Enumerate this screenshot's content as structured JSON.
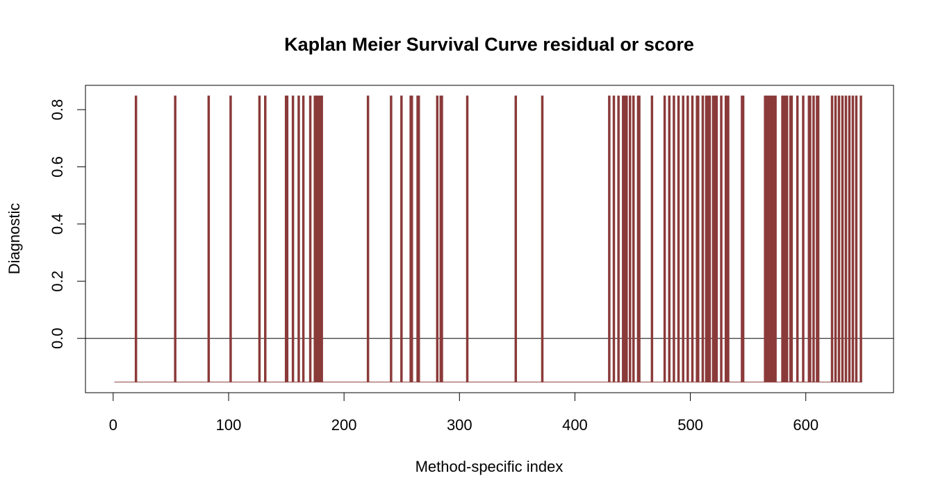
{
  "chart_data": {
    "type": "line",
    "title": "Kaplan Meier Survival Curve residual or score",
    "xlabel": "Method-specific index",
    "ylabel": "Diagnostic",
    "xlim": [
      -24,
      676
    ],
    "ylim": [
      -0.19,
      0.885
    ],
    "x_ticks": [
      0,
      100,
      200,
      300,
      400,
      500,
      600
    ],
    "x_tick_labels": [
      "0",
      "100",
      "200",
      "300",
      "400",
      "500",
      "600"
    ],
    "y_ticks": [
      0.0,
      0.2,
      0.4,
      0.6,
      0.8
    ],
    "y_tick_labels": [
      "0.0",
      "0.2",
      "0.4",
      "0.6",
      "0.8"
    ],
    "reference_line": {
      "y": 0.0,
      "color": "#000000"
    },
    "series_color": "#8b3a3a",
    "grid": false,
    "legend": "none",
    "series": [
      {
        "step": "vertical-spikes",
        "x_range": [
          1,
          648
        ],
        "baseline": -0.153,
        "points": [
          {
            "x": 19,
            "y": 0.848
          },
          {
            "x": 20,
            "y": 0.848
          },
          {
            "x": 53,
            "y": 0.848
          },
          {
            "x": 54,
            "y": 0.848
          },
          {
            "x": 82,
            "y": 0.848
          },
          {
            "x": 83,
            "y": 0.848
          },
          {
            "x": 101,
            "y": 0.848
          },
          {
            "x": 102,
            "y": 0.848
          },
          {
            "x": 126,
            "y": 0.848
          },
          {
            "x": 127,
            "y": 0.848
          },
          {
            "x": 131,
            "y": 0.848
          },
          {
            "x": 132,
            "y": 0.848
          },
          {
            "x": 149,
            "y": 0.848
          },
          {
            "x": 150,
            "y": 0.848
          },
          {
            "x": 151,
            "y": 0.848
          },
          {
            "x": 155,
            "y": 0.848
          },
          {
            "x": 156,
            "y": 0.848
          },
          {
            "x": 160,
            "y": 0.848
          },
          {
            "x": 161,
            "y": 0.848
          },
          {
            "x": 164,
            "y": 0.848
          },
          {
            "x": 165,
            "y": 0.848
          },
          {
            "x": 170,
            "y": 0.848
          },
          {
            "x": 171,
            "y": 0.848
          },
          {
            "x": 174,
            "y": 0.848
          },
          {
            "x": 175,
            "y": 0.848
          },
          {
            "x": 176,
            "y": 0.848
          },
          {
            "x": 177,
            "y": 0.848
          },
          {
            "x": 178,
            "y": 0.848
          },
          {
            "x": 179,
            "y": 0.848
          },
          {
            "x": 180,
            "y": 0.848
          },
          {
            "x": 181,
            "y": 0.848
          },
          {
            "x": 220,
            "y": 0.848
          },
          {
            "x": 221,
            "y": 0.848
          },
          {
            "x": 240,
            "y": 0.848
          },
          {
            "x": 241,
            "y": 0.848
          },
          {
            "x": 249,
            "y": 0.848
          },
          {
            "x": 250,
            "y": 0.848
          },
          {
            "x": 257,
            "y": 0.848
          },
          {
            "x": 258,
            "y": 0.848
          },
          {
            "x": 259,
            "y": 0.848
          },
          {
            "x": 263,
            "y": 0.848
          },
          {
            "x": 264,
            "y": 0.848
          },
          {
            "x": 265,
            "y": 0.848
          },
          {
            "x": 280,
            "y": 0.848
          },
          {
            "x": 281,
            "y": 0.848
          },
          {
            "x": 283,
            "y": 0.848
          },
          {
            "x": 284,
            "y": 0.848
          },
          {
            "x": 285,
            "y": 0.848
          },
          {
            "x": 306,
            "y": 0.848
          },
          {
            "x": 307,
            "y": 0.848
          },
          {
            "x": 348,
            "y": 0.848
          },
          {
            "x": 349,
            "y": 0.848
          },
          {
            "x": 371,
            "y": 0.848
          },
          {
            "x": 372,
            "y": 0.848
          },
          {
            "x": 429,
            "y": 0.848
          },
          {
            "x": 430,
            "y": 0.848
          },
          {
            "x": 433,
            "y": 0.848
          },
          {
            "x": 434,
            "y": 0.848
          },
          {
            "x": 437,
            "y": 0.848
          },
          {
            "x": 438,
            "y": 0.848
          },
          {
            "x": 441,
            "y": 0.848
          },
          {
            "x": 442,
            "y": 0.848
          },
          {
            "x": 443,
            "y": 0.848
          },
          {
            "x": 444,
            "y": 0.848
          },
          {
            "x": 445,
            "y": 0.848
          },
          {
            "x": 447,
            "y": 0.848
          },
          {
            "x": 448,
            "y": 0.848
          },
          {
            "x": 450,
            "y": 0.848
          },
          {
            "x": 451,
            "y": 0.848
          },
          {
            "x": 454,
            "y": 0.848
          },
          {
            "x": 455,
            "y": 0.848
          },
          {
            "x": 456,
            "y": 0.848
          },
          {
            "x": 466,
            "y": 0.848
          },
          {
            "x": 467,
            "y": 0.848
          },
          {
            "x": 477,
            "y": 0.848
          },
          {
            "x": 478,
            "y": 0.848
          },
          {
            "x": 481,
            "y": 0.848
          },
          {
            "x": 482,
            "y": 0.848
          },
          {
            "x": 485,
            "y": 0.848
          },
          {
            "x": 486,
            "y": 0.848
          },
          {
            "x": 489,
            "y": 0.848
          },
          {
            "x": 490,
            "y": 0.848
          },
          {
            "x": 493,
            "y": 0.848
          },
          {
            "x": 494,
            "y": 0.848
          },
          {
            "x": 497,
            "y": 0.848
          },
          {
            "x": 498,
            "y": 0.848
          },
          {
            "x": 501,
            "y": 0.848
          },
          {
            "x": 502,
            "y": 0.848
          },
          {
            "x": 505,
            "y": 0.848
          },
          {
            "x": 506,
            "y": 0.848
          },
          {
            "x": 507,
            "y": 0.848
          },
          {
            "x": 510,
            "y": 0.848
          },
          {
            "x": 511,
            "y": 0.848
          },
          {
            "x": 513,
            "y": 0.848
          },
          {
            "x": 514,
            "y": 0.848
          },
          {
            "x": 515,
            "y": 0.848
          },
          {
            "x": 516,
            "y": 0.848
          },
          {
            "x": 517,
            "y": 0.848
          },
          {
            "x": 519,
            "y": 0.848
          },
          {
            "x": 520,
            "y": 0.848
          },
          {
            "x": 521,
            "y": 0.848
          },
          {
            "x": 522,
            "y": 0.848
          },
          {
            "x": 523,
            "y": 0.848
          },
          {
            "x": 526,
            "y": 0.848
          },
          {
            "x": 527,
            "y": 0.848
          },
          {
            "x": 530,
            "y": 0.848
          },
          {
            "x": 531,
            "y": 0.848
          },
          {
            "x": 532,
            "y": 0.848
          },
          {
            "x": 533,
            "y": 0.848
          },
          {
            "x": 544,
            "y": 0.848
          },
          {
            "x": 545,
            "y": 0.848
          },
          {
            "x": 546,
            "y": 0.848
          },
          {
            "x": 564,
            "y": 0.848
          },
          {
            "x": 565,
            "y": 0.848
          },
          {
            "x": 566,
            "y": 0.848
          },
          {
            "x": 567,
            "y": 0.848
          },
          {
            "x": 568,
            "y": 0.848
          },
          {
            "x": 569,
            "y": 0.848
          },
          {
            "x": 570,
            "y": 0.848
          },
          {
            "x": 571,
            "y": 0.848
          },
          {
            "x": 572,
            "y": 0.848
          },
          {
            "x": 573,
            "y": 0.848
          },
          {
            "x": 574,
            "y": 0.848
          },
          {
            "x": 579,
            "y": 0.848
          },
          {
            "x": 580,
            "y": 0.848
          },
          {
            "x": 581,
            "y": 0.848
          },
          {
            "x": 582,
            "y": 0.848
          },
          {
            "x": 583,
            "y": 0.848
          },
          {
            "x": 584,
            "y": 0.848
          },
          {
            "x": 586,
            "y": 0.848
          },
          {
            "x": 587,
            "y": 0.848
          },
          {
            "x": 588,
            "y": 0.848
          },
          {
            "x": 592,
            "y": 0.848
          },
          {
            "x": 593,
            "y": 0.848
          },
          {
            "x": 597,
            "y": 0.848
          },
          {
            "x": 598,
            "y": 0.848
          },
          {
            "x": 602,
            "y": 0.848
          },
          {
            "x": 603,
            "y": 0.848
          },
          {
            "x": 604,
            "y": 0.848
          },
          {
            "x": 606,
            "y": 0.848
          },
          {
            "x": 607,
            "y": 0.848
          },
          {
            "x": 609,
            "y": 0.848
          },
          {
            "x": 610,
            "y": 0.848
          },
          {
            "x": 611,
            "y": 0.848
          },
          {
            "x": 622,
            "y": 0.848
          },
          {
            "x": 623,
            "y": 0.848
          },
          {
            "x": 625,
            "y": 0.848
          },
          {
            "x": 626,
            "y": 0.848
          },
          {
            "x": 628,
            "y": 0.848
          },
          {
            "x": 629,
            "y": 0.848
          },
          {
            "x": 631,
            "y": 0.848
          },
          {
            "x": 632,
            "y": 0.848
          },
          {
            "x": 634,
            "y": 0.848
          },
          {
            "x": 635,
            "y": 0.848
          },
          {
            "x": 637,
            "y": 0.848
          },
          {
            "x": 638,
            "y": 0.848
          },
          {
            "x": 640,
            "y": 0.848
          },
          {
            "x": 641,
            "y": 0.848
          },
          {
            "x": 643,
            "y": 0.848
          },
          {
            "x": 644,
            "y": 0.848
          },
          {
            "x": 647,
            "y": 0.848
          },
          {
            "x": 648,
            "y": 0.848
          }
        ]
      }
    ]
  }
}
